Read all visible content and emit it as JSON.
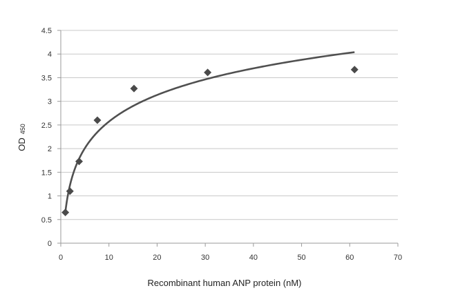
{
  "chart_data": {
    "type": "scatter",
    "title": "",
    "xlabel": "Recombinant human ANP protein (nM)",
    "ylabel": "OD",
    "ylabel_subscript": "450",
    "xlim": [
      0,
      70
    ],
    "ylim": [
      0,
      4.5
    ],
    "x_ticks": [
      "0",
      "10",
      "20",
      "30",
      "40",
      "50",
      "60",
      "70"
    ],
    "y_ticks": [
      "0",
      "0.5",
      "1",
      "1.5",
      "2",
      "2.5",
      "3",
      "3.5",
      "4",
      "4.5"
    ],
    "grid": "horizontal",
    "legend": "none",
    "marker": "diamond",
    "colors": {
      "marker": "#4a4a4a",
      "trend": "#505050",
      "grid": "#c8c8c8",
      "axis": "#9a9a9a"
    },
    "series": [
      {
        "x": [
          0.95,
          1.9,
          3.8,
          7.6,
          15.2,
          30.5,
          61
        ],
        "y": [
          0.65,
          1.1,
          1.73,
          2.6,
          3.27,
          3.61,
          3.67
        ]
      }
    ],
    "trendline": {
      "type": "logarithmic",
      "x_range": [
        0.95,
        61
      ],
      "y_at_start": 0.66,
      "y_at_end": 4.04
    }
  }
}
